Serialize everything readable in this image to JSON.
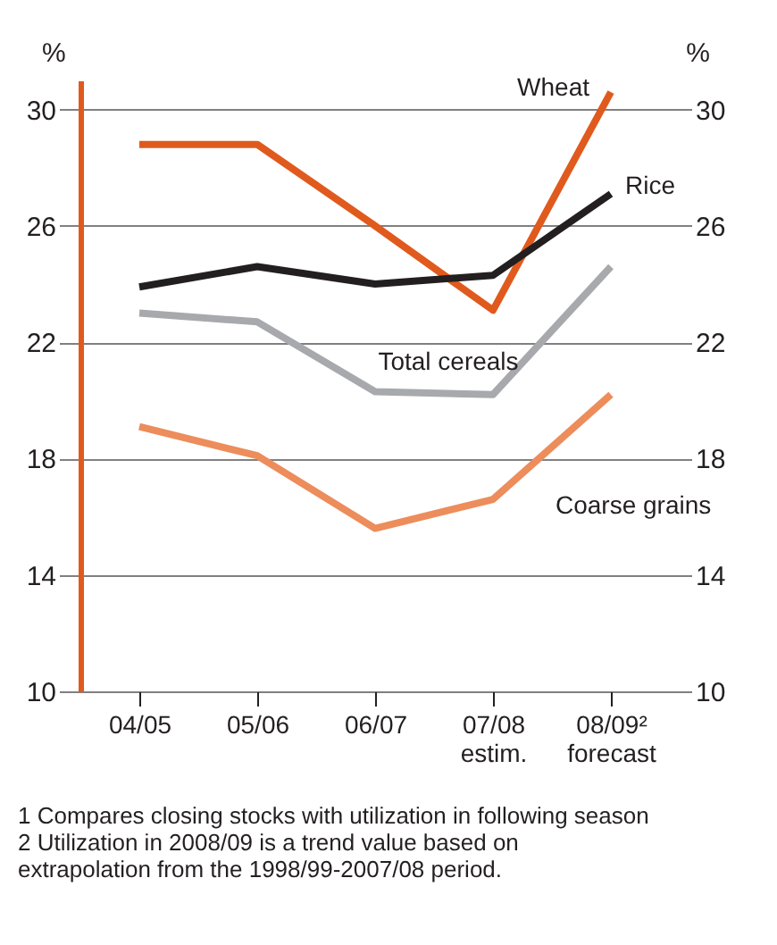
{
  "chart_data": {
    "type": "line",
    "categories": [
      "04/05",
      "05/06",
      "06/07",
      "07/08\nestim.",
      "08/09²\nforecast"
    ],
    "series": [
      {
        "name": "Wheat",
        "color": "#e05a1e",
        "values": [
          28.8,
          28.8,
          26.0,
          23.1,
          30.6
        ]
      },
      {
        "name": "Rice",
        "color": "#231f20",
        "values": [
          23.9,
          24.6,
          24.0,
          24.3,
          27.1
        ]
      },
      {
        "name": "Total cereals",
        "color": "#a7a9ac",
        "values": [
          23.0,
          22.7,
          20.3,
          20.2,
          24.6
        ]
      },
      {
        "name": "Coarse grains",
        "color": "#ec8d5b",
        "values": [
          19.1,
          18.1,
          15.6,
          16.6,
          20.2
        ]
      }
    ],
    "ylabel": "%",
    "y2label": "%",
    "ylim": [
      10,
      31
    ],
    "yticks": [
      10,
      14,
      18,
      22,
      26,
      30
    ],
    "y2lim": [
      10,
      31
    ],
    "y2ticks": [
      10,
      14,
      18,
      22,
      26,
      30
    ],
    "grid": "y",
    "marker": "none",
    "line_style": "solid",
    "annotations": [
      "1 Compares closing stocks with utilization in following season",
      "2 Utilization in 2008/09 is a trend value based on extrapolation from the 1998/99-2007/08 period."
    ]
  }
}
